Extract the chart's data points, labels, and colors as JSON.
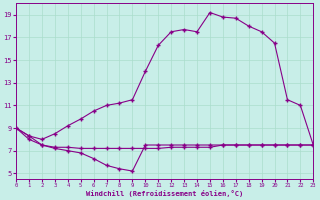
{
  "xlabel": "Windchill (Refroidissement éolien,°C)",
  "bg_color": "#c8eee8",
  "line_color": "#880088",
  "grid_color": "#aaddcc",
  "xlim": [
    0,
    23
  ],
  "ylim": [
    4.5,
    20
  ],
  "yticks": [
    5,
    7,
    9,
    11,
    13,
    15,
    17,
    19
  ],
  "xticks": [
    0,
    1,
    2,
    3,
    4,
    5,
    6,
    7,
    8,
    9,
    10,
    11,
    12,
    13,
    14,
    15,
    16,
    17,
    18,
    19,
    20,
    21,
    22,
    23
  ],
  "line1_x": [
    0,
    1,
    2,
    3,
    4,
    5,
    6,
    7,
    8,
    9,
    10,
    11,
    12,
    13,
    14,
    15,
    16,
    17,
    18,
    19,
    20,
    21,
    22,
    23
  ],
  "line1_y": [
    9.0,
    8.3,
    7.5,
    7.3,
    7.3,
    7.2,
    7.2,
    7.2,
    7.2,
    7.2,
    7.2,
    7.2,
    7.3,
    7.3,
    7.3,
    7.3,
    7.5,
    7.5,
    7.5,
    7.5,
    7.5,
    7.5,
    7.5,
    7.5
  ],
  "line2_x": [
    0,
    1,
    2,
    3,
    4,
    5,
    6,
    7,
    8,
    9,
    10,
    11,
    12,
    13,
    14,
    15,
    16,
    17,
    18,
    19,
    20,
    21,
    22,
    23
  ],
  "line2_y": [
    9.0,
    8.0,
    7.5,
    7.2,
    7.0,
    6.8,
    6.3,
    5.7,
    5.4,
    5.2,
    7.5,
    7.5,
    7.5,
    7.5,
    7.5,
    7.5,
    7.5,
    7.5,
    7.5,
    7.5,
    7.5,
    7.5,
    7.5,
    7.5
  ],
  "line3_x": [
    0,
    1,
    2,
    3,
    4,
    5,
    6,
    7,
    8,
    9,
    10,
    11,
    12,
    13,
    14,
    15,
    16,
    17,
    18,
    19,
    20,
    21,
    22,
    23
  ],
  "line3_y": [
    9.0,
    8.3,
    8.0,
    8.5,
    9.2,
    9.8,
    10.5,
    11.0,
    11.2,
    11.5,
    14.0,
    16.3,
    17.5,
    17.7,
    17.5,
    19.2,
    18.8,
    18.7,
    18.0,
    17.5,
    16.5,
    11.5,
    11.0,
    7.5
  ]
}
